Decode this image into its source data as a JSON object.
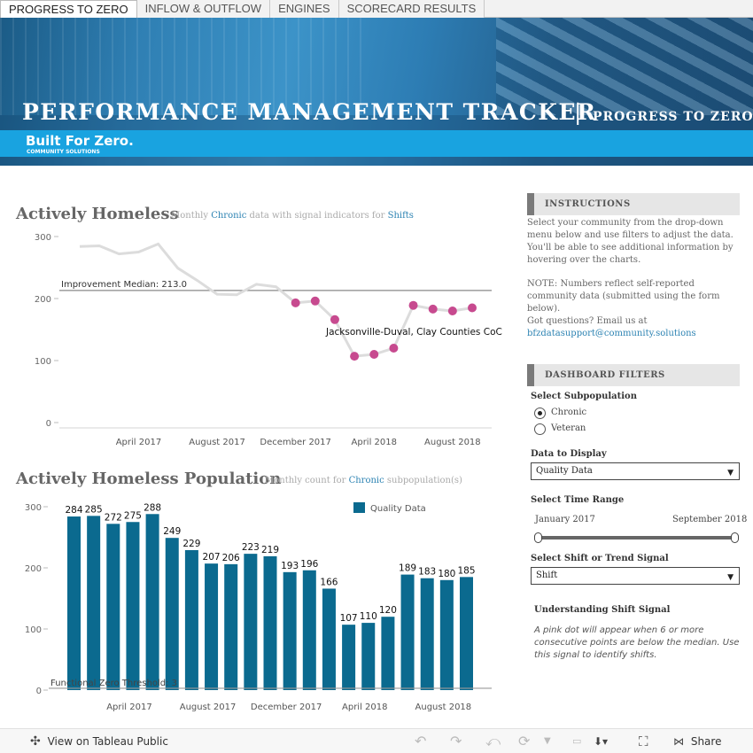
{
  "tabs": [
    {
      "label": "PROGRESS TO ZERO",
      "active": true
    },
    {
      "label": "INFLOW & OUTFLOW",
      "active": false
    },
    {
      "label": "ENGINES",
      "active": false
    },
    {
      "label": "SCORECARD RESULTS",
      "active": false
    }
  ],
  "banner": {
    "title": "PERFORMANCE MANAGEMENT TRACKER",
    "separator": "|",
    "subtitle": "PROGRESS TO ZERO",
    "brand_name": "Built For Zero.",
    "brand_sub": "COMMUNITY SOLUTIONS"
  },
  "chart1": {
    "title": "Actively Homeless",
    "subtitle_parts": [
      "Monthly",
      "Chronic",
      "data with signal indicators for",
      "Shifts"
    ],
    "median_label": "Improvement Median: 213.0",
    "community_label": "Jacksonville-Duval, Clay Counties CoC"
  },
  "chart2": {
    "title": "Actively Homeless Population",
    "subtitle_parts": [
      "Monthly count for",
      "Chronic",
      "subpopulation(s)"
    ],
    "legend_label": "Quality Data",
    "threshold_label": "Functional Zero Threshold: 3"
  },
  "chart_data": [
    {
      "type": "line",
      "title": "Actively Homeless",
      "x": [
        "Jan 2017",
        "Feb 2017",
        "Mar 2017",
        "Apr 2017",
        "May 2017",
        "Jun 2017",
        "Jul 2017",
        "Aug 2017",
        "Sep 2017",
        "Oct 2017",
        "Nov 2017",
        "Dec 2017",
        "Jan 2018",
        "Feb 2018",
        "Mar 2018",
        "Apr 2018",
        "May 2018",
        "Jun 2018",
        "Jul 2018",
        "Aug 2018",
        "Sep 2018"
      ],
      "values": [
        284,
        285,
        272,
        275,
        288,
        249,
        229,
        207,
        206,
        223,
        219,
        193,
        196,
        166,
        107,
        110,
        120,
        189,
        183,
        180,
        185
      ],
      "shift_signal": [
        false,
        false,
        false,
        false,
        false,
        false,
        false,
        false,
        false,
        false,
        false,
        true,
        true,
        true,
        true,
        true,
        true,
        true,
        true,
        true,
        true
      ],
      "xtick_labels": [
        "April 2017",
        "August 2017",
        "December 2017",
        "April 2018",
        "August 2018"
      ],
      "yticks": [
        0,
        100,
        200,
        300
      ],
      "ylim": [
        0,
        300
      ],
      "median": 213.0,
      "colors": {
        "line": "#dcdcdc",
        "signal": "#c74a8f",
        "median": "#888888"
      }
    },
    {
      "type": "bar",
      "title": "Actively Homeless Population",
      "series": [
        {
          "name": "Quality Data",
          "values": [
            284,
            285,
            272,
            275,
            288,
            249,
            229,
            207,
            206,
            223,
            219,
            193,
            196,
            166,
            107,
            110,
            120,
            189,
            183,
            180,
            185
          ]
        }
      ],
      "categories": [
        "Jan 2017",
        "Feb 2017",
        "Mar 2017",
        "Apr 2017",
        "May 2017",
        "Jun 2017",
        "Jul 2017",
        "Aug 2017",
        "Sep 2017",
        "Oct 2017",
        "Nov 2017",
        "Dec 2017",
        "Jan 2018",
        "Feb 2018",
        "Mar 2018",
        "Apr 2018",
        "May 2018",
        "Jun 2018",
        "Jul 2018",
        "Aug 2018",
        "Sep 2018"
      ],
      "xtick_labels": [
        "April 2017",
        "August 2017",
        "December 2017",
        "April 2018",
        "August 2018"
      ],
      "yticks": [
        0,
        100,
        200,
        300
      ],
      "threshold": 3,
      "colors": {
        "bar": "#0b6a8f"
      }
    }
  ],
  "instructions": {
    "heading": "INSTRUCTIONS",
    "p1": "Select your community from the drop-down menu below and use filters to adjust the data.  You'll be able to see additional information by hovering over the charts.",
    "p2": "NOTE: Numbers reflect self-reported community data (submitted using the form below).",
    "p3": "Got questions?  Email us at",
    "email": "bfzdatasupport@community.solutions"
  },
  "filters": {
    "heading": "DASHBOARD FILTERS",
    "subpop_label": "Select Subpopulation",
    "subpop_options": [
      "Chronic",
      "Veteran"
    ],
    "subpop_selected": "Chronic",
    "display_label": "Data to Display",
    "display_value": "Quality Data",
    "time_label": "Select Time Range",
    "time_start": "January 2017",
    "time_end": "September 2018",
    "shift_label": "Select Shift or Trend Signal",
    "shift_value": "Shift",
    "note_title": "Understanding Shift Signal",
    "note_text": "A pink dot will appear when 6 or more consecutive points are below the median. Use this signal to identify shifts."
  },
  "toolbar": {
    "view_label": "View on Tableau Public",
    "share_label": "Share"
  }
}
